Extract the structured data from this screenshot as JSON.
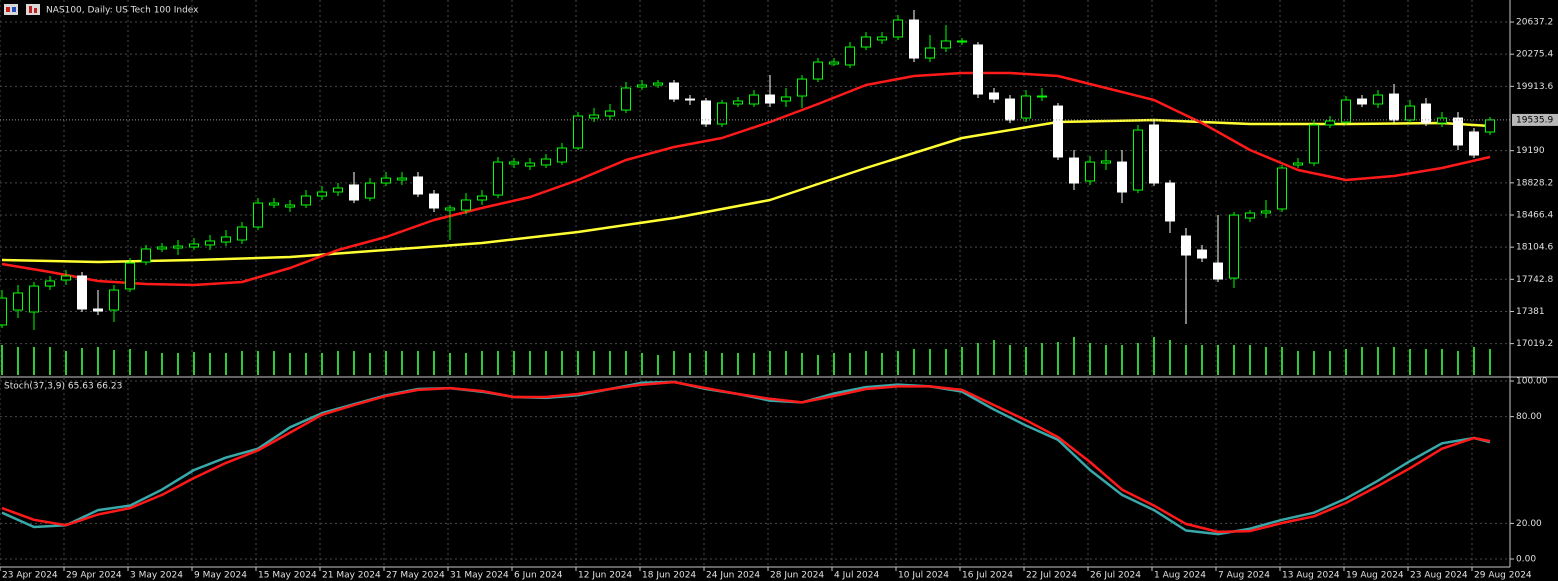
{
  "chart_data": [
    {
      "type": "candlestick",
      "title": "NAS100, Daily:  US Tech 100 Index",
      "bull_color": "#00ff00",
      "bear_color": "#ffffff",
      "volume_color": "#2ecc2e",
      "grid": true,
      "ylim": [
        16655,
        20885
      ],
      "yticks": [
        20637.2,
        20275.4,
        19913.6,
        19190.0,
        18828.2,
        18466.4,
        18104.6,
        17742.8,
        17381.0,
        17019.2
      ],
      "last_price": 19535.9,
      "open": [
        17229,
        17397,
        17375,
        17667,
        17735,
        17780,
        17409,
        17397,
        17634,
        17937,
        18084,
        18095,
        18106,
        18129,
        18162,
        18185,
        18331,
        18579,
        18556,
        18579,
        18680,
        18725,
        18804,
        18657,
        18826,
        18860,
        18894,
        18702,
        18522,
        18522,
        18635,
        18691,
        19040,
        19017,
        19029,
        19062,
        19220,
        19557,
        19580,
        19647,
        19906,
        19929,
        19951,
        19771,
        19749,
        19490,
        19715,
        19715,
        19816,
        19749,
        19805,
        19996,
        20165,
        20154,
        20356,
        20435,
        20469,
        20660,
        20232,
        20345,
        20412,
        20379,
        19839,
        19771,
        19557,
        19794,
        19692,
        19107,
        18849,
        19051,
        19062,
        18747,
        19479,
        18826,
        18230,
        18072,
        17926,
        17757,
        18432,
        18489,
        18534,
        19029,
        19051,
        19479,
        19512,
        19771,
        19715,
        19827,
        19535,
        19715,
        19501,
        19557,
        19400,
        19400
      ],
      "high": [
        17622,
        17679,
        17712,
        17780,
        17847,
        17825,
        17622,
        17679,
        17982,
        18129,
        18151,
        18185,
        18207,
        18241,
        18297,
        18387,
        18657,
        18657,
        18635,
        18747,
        18792,
        18826,
        18950,
        18882,
        18950,
        18950,
        18950,
        18747,
        18579,
        18714,
        18747,
        19119,
        19107,
        19107,
        19152,
        19276,
        19625,
        19670,
        19715,
        19962,
        19985,
        19985,
        19985,
        19816,
        19782,
        19760,
        19794,
        19872,
        20041,
        19895,
        20041,
        20232,
        20232,
        20412,
        20525,
        20525,
        20716,
        20772,
        20491,
        20604,
        20457,
        20412,
        19895,
        19816,
        19872,
        19895,
        19726,
        19197,
        19130,
        19197,
        19197,
        19479,
        19535,
        18860,
        18320,
        18129,
        18466,
        18500,
        18522,
        18635,
        19029,
        19107,
        19535,
        19580,
        19805,
        19816,
        19872,
        19940,
        19760,
        19782,
        19625,
        19625,
        19445,
        19569
      ],
      "low": [
        17195,
        17307,
        17172,
        17622,
        17679,
        17375,
        17341,
        17262,
        17600,
        17904,
        18050,
        18016,
        18072,
        18072,
        18117,
        18140,
        18297,
        18545,
        18500,
        18545,
        18635,
        18680,
        18601,
        18624,
        18792,
        18804,
        18669,
        18500,
        18185,
        18477,
        18579,
        18657,
        18995,
        18972,
        18995,
        19029,
        19197,
        19512,
        19535,
        19614,
        19872,
        19895,
        19737,
        19704,
        19456,
        19456,
        19681,
        19681,
        19681,
        19681,
        19670,
        19962,
        20142,
        20120,
        20322,
        20390,
        20435,
        20187,
        20187,
        20300,
        20379,
        19782,
        19726,
        19501,
        19512,
        19749,
        19085,
        18747,
        18804,
        18972,
        18601,
        18714,
        18792,
        18264,
        17240,
        17937,
        17712,
        17645,
        18387,
        18432,
        18500,
        18995,
        19017,
        19445,
        19479,
        19681,
        19670,
        19501,
        19501,
        19467,
        19456,
        19197,
        19107,
        19366
      ],
      "close": [
        17532,
        17589,
        17667,
        17724,
        17780,
        17409,
        17386,
        17622,
        17926,
        18084,
        18106,
        18117,
        18140,
        18174,
        18219,
        18331,
        18601,
        18601,
        18579,
        18680,
        18725,
        18770,
        18635,
        18826,
        18882,
        18882,
        18702,
        18545,
        18545,
        18635,
        18680,
        19062,
        19062,
        19051,
        19096,
        19220,
        19580,
        19591,
        19636,
        19895,
        19929,
        19951,
        19771,
        19760,
        19490,
        19726,
        19749,
        19816,
        19726,
        19794,
        19996,
        20187,
        20187,
        20356,
        20469,
        20469,
        20660,
        20232,
        20345,
        20424,
        20424,
        19827,
        19771,
        19535,
        19805,
        19805,
        19119,
        18826,
        19062,
        19074,
        18725,
        19422,
        18826,
        18399,
        18016,
        17982,
        17746,
        18466,
        18489,
        18511,
        18995,
        19051,
        19479,
        19524,
        19760,
        19715,
        19816,
        19535,
        19692,
        19501,
        19557,
        19254,
        19141,
        19535.9
      ],
      "volume": [
        30,
        28,
        28,
        28,
        24,
        27,
        28,
        25,
        26,
        24,
        22,
        22,
        23,
        22,
        22,
        24,
        24,
        24,
        22,
        22,
        22,
        24,
        24,
        22,
        24,
        24,
        24,
        24,
        22,
        22,
        24,
        24,
        24,
        24,
        24,
        24,
        24,
        24,
        24,
        24,
        22,
        20,
        24,
        22,
        24,
        22,
        22,
        22,
        24,
        24,
        22,
        20,
        22,
        22,
        24,
        22,
        24,
        26,
        26,
        26,
        28,
        32,
        35,
        30,
        28,
        32,
        33,
        38,
        32,
        30,
        30,
        32,
        38,
        35,
        30,
        30,
        30,
        30,
        30,
        28,
        28,
        24,
        24,
        24,
        26,
        28,
        28,
        28,
        26,
        26,
        26,
        24,
        28,
        26
      ],
      "series": [
        {
          "color": "#ffff33",
          "x": [
            0,
            6,
            12,
            18,
            24,
            30,
            36,
            42,
            48,
            54,
            60,
            66,
            72,
            78,
            84,
            90,
            93
          ],
          "values": [
            17960,
            17937,
            17960,
            17994,
            18072,
            18151,
            18275,
            18432,
            18635,
            18995,
            19332,
            19512,
            19535,
            19490,
            19490,
            19501,
            19467
          ]
        },
        {
          "color": "#ff1a1a",
          "x": [
            0,
            3,
            6,
            9,
            12,
            15,
            18,
            21,
            24,
            27,
            30,
            33,
            36,
            39,
            42,
            45,
            48,
            51,
            54,
            57,
            60,
            63,
            66,
            69,
            72,
            75,
            78,
            81,
            84,
            87,
            90,
            93
          ],
          "values": [
            17915,
            17825,
            17724,
            17690,
            17679,
            17712,
            17870,
            18072,
            18219,
            18410,
            18545,
            18669,
            18860,
            19085,
            19231,
            19332,
            19512,
            19715,
            19929,
            20030,
            20064,
            20064,
            20030,
            19895,
            19760,
            19501,
            19197,
            18972,
            18860,
            18905,
            18995,
            19119
          ]
        }
      ]
    },
    {
      "type": "line",
      "title": "Stoch(37,3,9) 65.63 66.23",
      "grid": true,
      "ylim": [
        -4.5,
        101.7
      ],
      "yticks": [
        {
          "value": 100,
          "label": "100.00"
        },
        {
          "value": 80,
          "label": "80.00"
        },
        {
          "value": 20,
          "label": "20.00"
        },
        {
          "value": 0,
          "label": "0.00"
        }
      ],
      "xticks": [
        {
          "value": 0,
          "label": "23 Apr 2024"
        },
        {
          "value": 4,
          "label": "29 Apr 2024"
        },
        {
          "value": 8,
          "label": "3 May 2024"
        },
        {
          "value": 12,
          "label": "9 May 2024"
        },
        {
          "value": 16,
          "label": "15 May 2024"
        },
        {
          "value": 20,
          "label": "21 May 2024"
        },
        {
          "value": 24,
          "label": "27 May 2024"
        },
        {
          "value": 28,
          "label": "31 May 2024"
        },
        {
          "value": 32,
          "label": "6 Jun 2024"
        },
        {
          "value": 36,
          "label": "12 Jun 2024"
        },
        {
          "value": 40,
          "label": "18 Jun 2024"
        },
        {
          "value": 44,
          "label": "24 Jun 2024"
        },
        {
          "value": 48,
          "label": "28 Jun 2024"
        },
        {
          "value": 52,
          "label": "4 Jul 2024"
        },
        {
          "value": 56,
          "label": "10 Jul 2024"
        },
        {
          "value": 60,
          "label": "16 Jul 2024"
        },
        {
          "value": 64,
          "label": "22 Jul 2024"
        },
        {
          "value": 68,
          "label": "26 Jul 2024"
        },
        {
          "value": 72,
          "label": "1 Aug 2024"
        },
        {
          "value": 76,
          "label": "7 Aug 2024"
        },
        {
          "value": 80,
          "label": "13 Aug 2024"
        },
        {
          "value": 84,
          "label": "19 Aug 2024"
        },
        {
          "value": 88,
          "label": "23 Aug 2024"
        },
        {
          "value": 92,
          "label": "29 Aug 2024"
        }
      ],
      "series": [
        {
          "color": "#3aa8a8",
          "x": [
            0,
            2,
            4,
            6,
            8,
            10,
            12,
            14,
            16,
            18,
            20,
            22,
            24,
            26,
            28,
            30,
            32,
            34,
            36,
            38,
            40,
            42,
            44,
            46,
            48,
            50,
            52,
            54,
            56,
            58,
            60,
            62,
            64,
            66,
            68,
            70,
            72,
            74,
            76,
            78,
            80,
            82,
            84,
            86,
            88,
            90,
            92,
            93
          ],
          "values": [
            26,
            18,
            19,
            27.5,
            30,
            39,
            50,
            57,
            62,
            74,
            82,
            87,
            92,
            95.5,
            96,
            94,
            91,
            90.5,
            92,
            95.5,
            99,
            99.5,
            95.5,
            92.7,
            89,
            88,
            93,
            96.6,
            98,
            97,
            94,
            84,
            75,
            67,
            50,
            36,
            27.5,
            16,
            14,
            17,
            22,
            26,
            34,
            44,
            55,
            65,
            68,
            65.63
          ]
        },
        {
          "color": "#ff1a1a",
          "x": [
            0,
            2,
            4,
            6,
            8,
            10,
            12,
            14,
            16,
            18,
            20,
            22,
            24,
            26,
            28,
            30,
            32,
            34,
            36,
            38,
            40,
            42,
            44,
            46,
            48,
            50,
            52,
            54,
            56,
            58,
            60,
            62,
            64,
            66,
            68,
            70,
            72,
            74,
            76,
            78,
            80,
            82,
            84,
            86,
            88,
            90,
            92,
            93
          ],
          "values": [
            28.6,
            22,
            19,
            25,
            28.6,
            36,
            45.5,
            54,
            61,
            71,
            81,
            86.5,
            91.6,
            95,
            96,
            94.4,
            91,
            91,
            92.7,
            95.5,
            98,
            99.4,
            96,
            92.7,
            90,
            88,
            91.6,
            95.5,
            97,
            97,
            95,
            86.5,
            78,
            68.5,
            54.5,
            39,
            30,
            19.7,
            15.2,
            15.7,
            20.2,
            24,
            31.5,
            41,
            51,
            62,
            68,
            66.23
          ]
        }
      ]
    }
  ]
}
